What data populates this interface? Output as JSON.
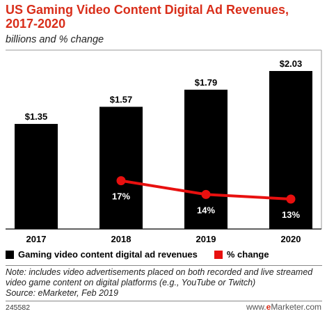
{
  "header": {
    "title": "US Gaming Video Content Digital Ad Revenues, 2017-2020",
    "subtitle": "billions and % change"
  },
  "legend": {
    "bar_label": "Gaming video content digital ad revenues",
    "line_label": "% change"
  },
  "colors": {
    "bar": "#000000",
    "line": "#e8100f",
    "title": "#d92e1a"
  },
  "chart_data": {
    "type": "bar",
    "title": "US Gaming Video Content Digital Ad Revenues, 2017-2020",
    "subtitle": "billions and % change",
    "categories": [
      "2017",
      "2018",
      "2019",
      "2020"
    ],
    "series": [
      {
        "name": "Gaming video content digital ad revenues",
        "type": "bar",
        "unit": "billions",
        "values": [
          1.35,
          1.57,
          1.79,
          2.03
        ],
        "labels": [
          "$1.35",
          "$1.57",
          "$1.79",
          "$2.03"
        ]
      },
      {
        "name": "% change",
        "type": "line",
        "values": [
          null,
          17,
          14,
          13
        ],
        "labels": [
          null,
          "17%",
          "14%",
          "13%"
        ]
      }
    ],
    "ylim": [
      0,
      2.2
    ],
    "grid": false,
    "legend_position": "bottom-left"
  },
  "footer": {
    "note": "Note: includes video advertisements placed on both recorded and live streamed video game content on digital platforms (e.g., YouTube or Twitch)",
    "source": "Source: eMarketer, Feb 2019",
    "chart_id": "245582",
    "brand_prefix": "www.",
    "brand_highlight": "e",
    "brand_suffix": "Marketer.com"
  }
}
